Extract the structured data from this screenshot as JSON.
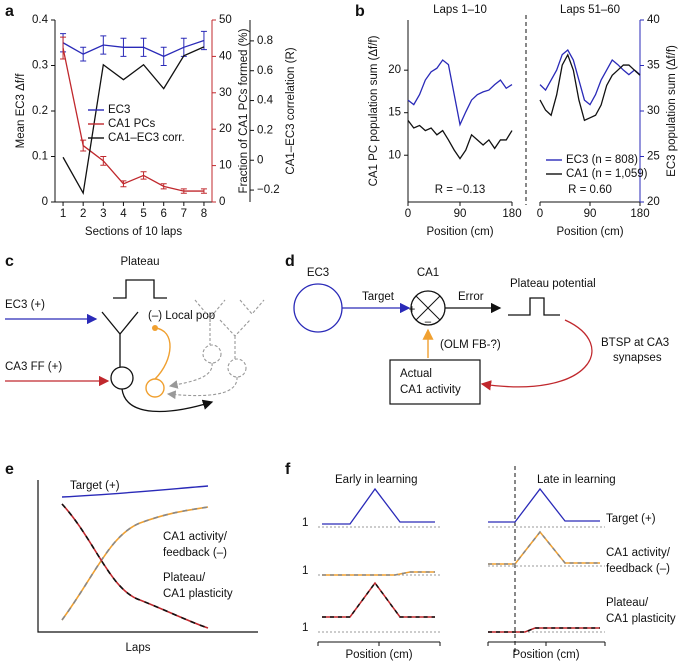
{
  "chart_data": [
    {
      "type": "line",
      "panel": "a",
      "x": [
        1,
        2,
        3,
        4,
        5,
        6,
        7,
        8
      ],
      "xlim": [
        0.6,
        8.4
      ],
      "xticks": [
        1,
        2,
        3,
        4,
        5,
        6,
        7,
        8
      ],
      "x_label": "Sections of 10 laps",
      "y_label": "Mean EC3 Δf/f",
      "ylim": [
        0,
        0.4
      ],
      "yticks": [
        0,
        0.1,
        0.2,
        0.3,
        0.4
      ],
      "y2_label": "Fraction of CA1 PCs formed (%)",
      "y2lim": [
        0,
        50
      ],
      "y2ticks": [
        0,
        10,
        20,
        30,
        40,
        50
      ],
      "y2_color": "#c0282d",
      "y3_label": "CA1–EC3 correlation (R)",
      "y3lim": [
        -0.28,
        0.94
      ],
      "y3ticks": [
        {
          "value": -0.2,
          "label": "−0.2"
        },
        0,
        0.2,
        0.4,
        0.6,
        0.8
      ],
      "legend": "center",
      "series": [
        {
          "name": "EC3",
          "color": "#2a2ab8",
          "values": [
            0.35,
            0.325,
            0.345,
            0.34,
            0.34,
            0.32,
            0.34,
            0.355
          ],
          "errors": [
            0.02,
            0.015,
            0.02,
            0.02,
            0.02,
            0.02,
            0.02,
            0.02
          ]
        },
        {
          "name": "CA1 PCs",
          "color": "#c0282d",
          "axis": "y2",
          "values": [
            42.3,
            15.5,
            11.3,
            5,
            7.3,
            4.3,
            3,
            3
          ],
          "errors": [
            3,
            1.5,
            1.2,
            0.8,
            1,
            0.7,
            0.6,
            0.6
          ]
        },
        {
          "name": "CA1–EC3 corr.",
          "color": "#111111",
          "axis": "y3",
          "values": [
            0.02,
            -0.22,
            0.64,
            0.54,
            0.64,
            0.48,
            0.7,
            0.76
          ]
        }
      ]
    },
    {
      "type": "line",
      "panel": "b",
      "title": "Laps 1–10",
      "x": [
        0,
        10,
        20,
        30,
        40,
        50,
        60,
        70,
        80,
        90,
        100,
        110,
        120,
        130,
        140,
        150,
        160,
        170,
        180
      ],
      "xlim": [
        0,
        180
      ],
      "xticks": [
        0,
        90,
        180
      ],
      "x_label": "Position (cm)",
      "y_label": "CA1 PC population sum (Δf/f)",
      "ylim": [
        4.5,
        25.9
      ],
      "yticks": [
        10,
        15,
        20
      ],
      "y2lim": [
        20,
        40
      ],
      "annotation": "R = −0.13",
      "series": [
        {
          "color": "#2a2ab8",
          "axis": "y2",
          "values": [
            31.2,
            30.7,
            31.8,
            33.4,
            34.3,
            34.7,
            35.6,
            35.1,
            31.8,
            28.5,
            29.9,
            31.2,
            31.8,
            32.1,
            32.3,
            32.9,
            33.4,
            32.5,
            32.9
          ]
        },
        {
          "color": "#111111",
          "values": [
            14.1,
            13.2,
            13.5,
            12.9,
            13.2,
            12.4,
            12.9,
            11.8,
            10.6,
            9.6,
            10.6,
            12.4,
            11.8,
            11.2,
            11.8,
            10.8,
            11.8,
            11.8,
            12.9
          ]
        }
      ]
    },
    {
      "type": "line",
      "title": "Laps 51–60",
      "x": [
        0,
        10,
        20,
        30,
        40,
        50,
        60,
        70,
        80,
        90,
        100,
        110,
        120,
        130,
        140,
        150,
        160,
        170,
        180
      ],
      "xlim": [
        0,
        180
      ],
      "xticks": [
        0,
        90,
        180
      ],
      "x_label": "Position (cm)",
      "ylim": [
        4.5,
        25.9
      ],
      "y2_label": "EC3 population sum (Δf/f)",
      "y2lim": [
        20,
        40
      ],
      "y2ticks": [
        20,
        25,
        30,
        35,
        40
      ],
      "y2_color": "#2a2ab8",
      "annotation": "R = 0.60",
      "legend": "lower left",
      "series": [
        {
          "name": "EC3 (n = 808)",
          "color": "#2a2ab8",
          "axis": "y2",
          "values": [
            32.9,
            32.3,
            33.4,
            34.5,
            36.2,
            36.7,
            35.6,
            33.4,
            31.2,
            30.7,
            31.8,
            33.4,
            34.5,
            35.6,
            35.1,
            34.5,
            34.0,
            34.5,
            34.0
          ]
        },
        {
          "name": "CA1 (n = 1,059)",
          "color": "#111111",
          "values": [
            16.5,
            15.3,
            14.7,
            17.1,
            20.6,
            21.8,
            20.0,
            16.5,
            14.1,
            14.4,
            14.7,
            15.9,
            18.2,
            19.4,
            20.0,
            20.6,
            20.6,
            20.0,
            19.4
          ]
        }
      ]
    }
  ],
  "panel_c": {
    "label": "c",
    "plateau": "Plateau",
    "ec3_input": "EC3 (+)",
    "local_pop": "(–) Local pop",
    "ca3_input": "CA3 FF (+)"
  },
  "panel_d": {
    "label": "d",
    "ec3": "EC3",
    "ca1": "CA1",
    "target": "Target",
    "error": "Error",
    "plus": "+",
    "minus": "–",
    "plateau": "Plateau potential",
    "feedback": "(OLM FB-?)",
    "btsp": [
      "BTSP at CA3",
      "synapses"
    ],
    "actual": [
      "Actual",
      "CA1 activity"
    ]
  },
  "panel_e": {
    "label": "e",
    "target": "Target (+)",
    "feedback": [
      "CA1 activity/",
      "feedback (–)"
    ],
    "plasticity": [
      "Plateau/",
      "CA1 plasticity"
    ],
    "x_label": "Laps"
  },
  "panel_f": {
    "label": "f",
    "early": "Early in learning",
    "late": "Late in learning",
    "ticks": [
      "1",
      "1",
      "1"
    ],
    "target": "Target (+)",
    "feedback": [
      "CA1 activity/",
      "feedback (–)"
    ],
    "plasticity": [
      "Plateau/",
      "CA1 plasticity"
    ],
    "x_label": "Position (cm)"
  }
}
